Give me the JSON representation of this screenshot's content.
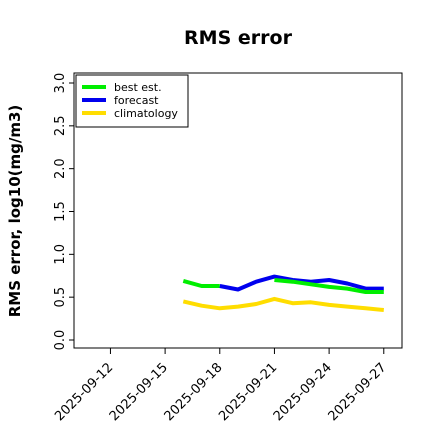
{
  "chart_data": {
    "type": "line",
    "title": "RMS error",
    "ylabel": "RMS error, log10(mg/m3)",
    "xlabel": "",
    "ylim": [
      0,
      3.0
    ],
    "xlim": [
      "2025-09-10",
      "2025-09-28"
    ],
    "yticks": [
      0.0,
      0.5,
      1.0,
      1.5,
      2.0,
      2.5,
      3.0
    ],
    "ytick_labels": [
      "0.0",
      "0.5",
      "1.0",
      "1.5",
      "2.0",
      "2.5",
      "3.0"
    ],
    "xticks": [
      "2025-09-12",
      "2025-09-15",
      "2025-09-18",
      "2025-09-21",
      "2025-09-24",
      "2025-09-27"
    ],
    "highlight_tick": "2025-09-18",
    "highlight_color": "#228B22",
    "grid": false,
    "legend_position": "top-left",
    "series": [
      {
        "name": "best est.",
        "color": "#00ee00",
        "x": [
          "2025-09-16",
          "2025-09-17",
          "2025-09-18"
        ],
        "values": [
          0.69,
          0.63,
          0.63
        ]
      },
      {
        "name": "forecast",
        "color": "#0000ee",
        "x": [
          "2025-09-18",
          "2025-09-19",
          "2025-09-20",
          "2025-09-21",
          "2025-09-22",
          "2025-09-23",
          "2025-09-24",
          "2025-09-25",
          "2025-09-26",
          "2025-09-27"
        ],
        "values": [
          0.63,
          0.59,
          0.68,
          0.74,
          0.7,
          0.68,
          0.7,
          0.66,
          0.6,
          0.6
        ]
      },
      {
        "name": "climatology",
        "color": "#ffdd00",
        "x": [
          "2025-09-16",
          "2025-09-17",
          "2025-09-18",
          "2025-09-19",
          "2025-09-20",
          "2025-09-21",
          "2025-09-22",
          "2025-09-23",
          "2025-09-24",
          "2025-09-25",
          "2025-09-26",
          "2025-09-27"
        ],
        "values": [
          0.45,
          0.4,
          0.37,
          0.39,
          0.42,
          0.48,
          0.43,
          0.44,
          0.41,
          0.39,
          0.37,
          0.35
        ]
      },
      {
        "name": "",
        "color": "#00ee00",
        "x": [
          "2025-09-21",
          "2025-09-22",
          "2025-09-23",
          "2025-09-24",
          "2025-09-25",
          "2025-09-26",
          "2025-09-27"
        ],
        "values": [
          0.7,
          0.68,
          0.65,
          0.62,
          0.6,
          0.56,
          0.56
        ]
      }
    ]
  }
}
